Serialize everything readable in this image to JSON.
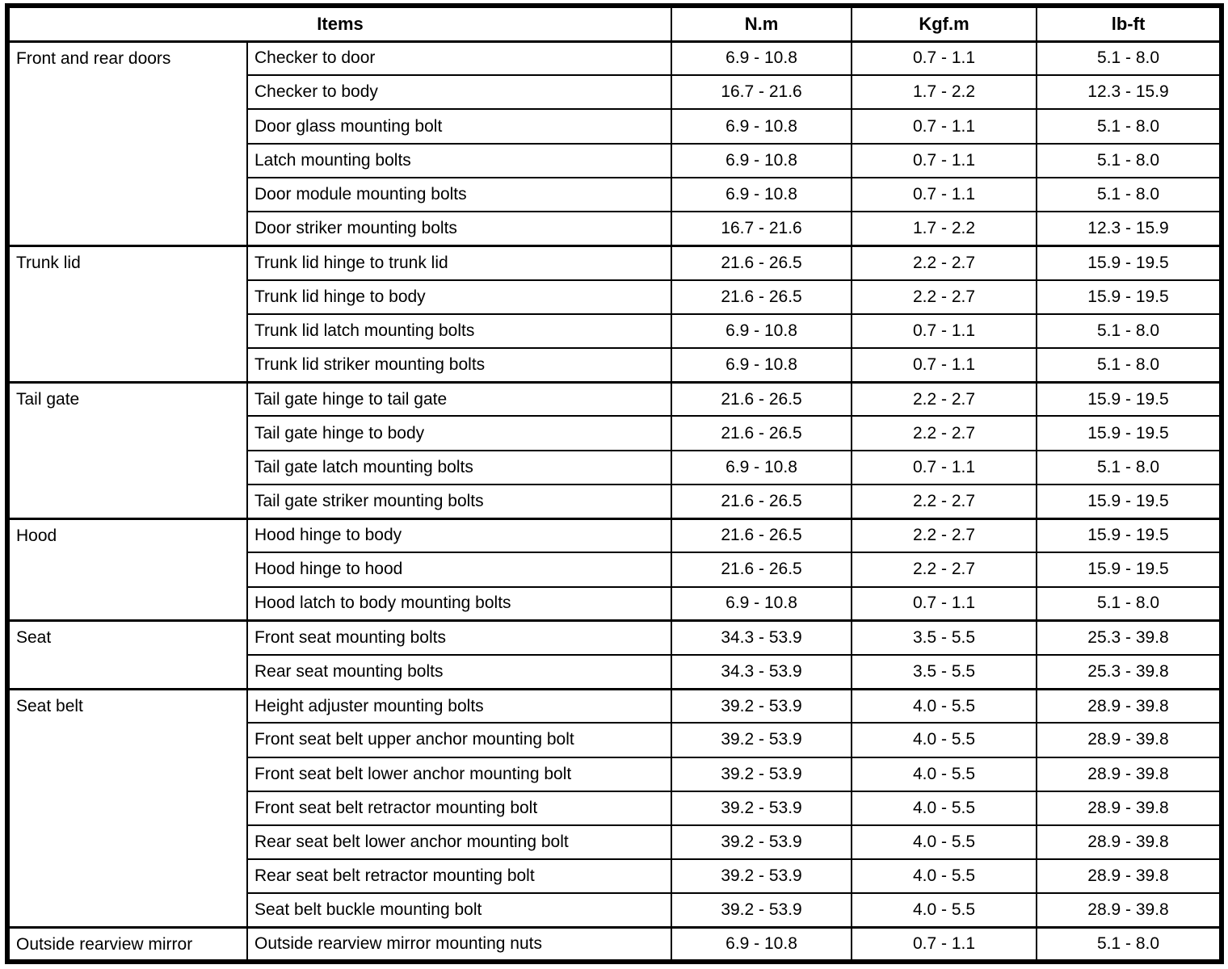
{
  "table": {
    "header": {
      "items": "Items",
      "nm": "N.m",
      "kgfm": "Kgf.m",
      "lbft": "lb-ft"
    },
    "groups": [
      {
        "category": "Front and rear doors",
        "rows": [
          {
            "item": "Checker to door",
            "nm": "6.9 - 10.8",
            "kgfm": "0.7 - 1.1",
            "lbft": "5.1 - 8.0"
          },
          {
            "item": "Checker to body",
            "nm": "16.7 - 21.6",
            "kgfm": "1.7 - 2.2",
            "lbft": "12.3 - 15.9"
          },
          {
            "item": "Door glass mounting bolt",
            "nm": "6.9 - 10.8",
            "kgfm": "0.7 - 1.1",
            "lbft": "5.1 - 8.0"
          },
          {
            "item": "Latch mounting bolts",
            "nm": "6.9 - 10.8",
            "kgfm": "0.7 - 1.1",
            "lbft": "5.1 - 8.0"
          },
          {
            "item": "Door module mounting bolts",
            "nm": "6.9 - 10.8",
            "kgfm": "0.7 - 1.1",
            "lbft": "5.1 - 8.0"
          },
          {
            "item": "Door striker mounting bolts",
            "nm": "16.7 - 21.6",
            "kgfm": "1.7 - 2.2",
            "lbft": "12.3 - 15.9"
          }
        ]
      },
      {
        "category": "Trunk lid",
        "rows": [
          {
            "item": "Trunk lid hinge to trunk lid",
            "nm": "21.6 - 26.5",
            "kgfm": "2.2 - 2.7",
            "lbft": "15.9 - 19.5"
          },
          {
            "item": "Trunk lid hinge to body",
            "nm": "21.6 - 26.5",
            "kgfm": "2.2 - 2.7",
            "lbft": "15.9 - 19.5"
          },
          {
            "item": "Trunk lid latch mounting bolts",
            "nm": "6.9 - 10.8",
            "kgfm": "0.7 - 1.1",
            "lbft": "5.1 - 8.0"
          },
          {
            "item": "Trunk lid striker mounting bolts",
            "nm": "6.9 - 10.8",
            "kgfm": "0.7 - 1.1",
            "lbft": "5.1 - 8.0"
          }
        ]
      },
      {
        "category": "Tail gate",
        "rows": [
          {
            "item": "Tail gate hinge to tail gate",
            "nm": "21.6 - 26.5",
            "kgfm": "2.2 - 2.7",
            "lbft": "15.9 - 19.5"
          },
          {
            "item": "Tail gate hinge to body",
            "nm": "21.6 - 26.5",
            "kgfm": "2.2 - 2.7",
            "lbft": "15.9 - 19.5"
          },
          {
            "item": "Tail gate latch mounting bolts",
            "nm": "6.9 - 10.8",
            "kgfm": "0.7 - 1.1",
            "lbft": "5.1 - 8.0"
          },
          {
            "item": "Tail gate striker mounting bolts",
            "nm": "21.6 - 26.5",
            "kgfm": "2.2 - 2.7",
            "lbft": "15.9 - 19.5"
          }
        ]
      },
      {
        "category": "Hood",
        "rows": [
          {
            "item": "Hood hinge to body",
            "nm": "21.6 - 26.5",
            "kgfm": "2.2 - 2.7",
            "lbft": "15.9 - 19.5"
          },
          {
            "item": "Hood hinge to hood",
            "nm": "21.6 - 26.5",
            "kgfm": "2.2 - 2.7",
            "lbft": "15.9 - 19.5"
          },
          {
            "item": "Hood latch to body mounting bolts",
            "nm": "6.9 - 10.8",
            "kgfm": "0.7 - 1.1",
            "lbft": "5.1 - 8.0"
          }
        ]
      },
      {
        "category": "Seat",
        "rows": [
          {
            "item": "Front seat mounting bolts",
            "nm": "34.3 - 53.9",
            "kgfm": "3.5 - 5.5",
            "lbft": "25.3 - 39.8"
          },
          {
            "item": "Rear seat mounting bolts",
            "nm": "34.3 - 53.9",
            "kgfm": "3.5 - 5.5",
            "lbft": "25.3 - 39.8"
          }
        ]
      },
      {
        "category": "Seat belt",
        "rows": [
          {
            "item": "Height adjuster mounting bolts",
            "nm": "39.2 - 53.9",
            "kgfm": "4.0 - 5.5",
            "lbft": "28.9 - 39.8"
          },
          {
            "item": "Front seat belt upper anchor mounting bolt",
            "nm": "39.2 - 53.9",
            "kgfm": "4.0 - 5.5",
            "lbft": "28.9 - 39.8"
          },
          {
            "item": "Front seat belt lower anchor mounting bolt",
            "nm": "39.2 - 53.9",
            "kgfm": "4.0 - 5.5",
            "lbft": "28.9 - 39.8"
          },
          {
            "item": "Front seat belt retractor mounting bolt",
            "nm": "39.2 - 53.9",
            "kgfm": "4.0 - 5.5",
            "lbft": "28.9 - 39.8"
          },
          {
            "item": "Rear seat belt lower anchor mounting bolt",
            "nm": "39.2 - 53.9",
            "kgfm": "4.0 - 5.5",
            "lbft": "28.9 - 39.8"
          },
          {
            "item": "Rear seat belt retractor mounting bolt",
            "nm": "39.2 - 53.9",
            "kgfm": "4.0 - 5.5",
            "lbft": "28.9 - 39.8"
          },
          {
            "item": "Seat belt buckle mounting bolt",
            "nm": "39.2 - 53.9",
            "kgfm": "4.0 - 5.5",
            "lbft": "28.9 - 39.8"
          }
        ]
      },
      {
        "category": "Outside rearview mirror",
        "rows": [
          {
            "item": "Outside rearview mirror mounting nuts",
            "nm": "6.9 - 10.8",
            "kgfm": "0.7 - 1.1",
            "lbft": "5.1 - 8.0"
          }
        ]
      }
    ]
  }
}
